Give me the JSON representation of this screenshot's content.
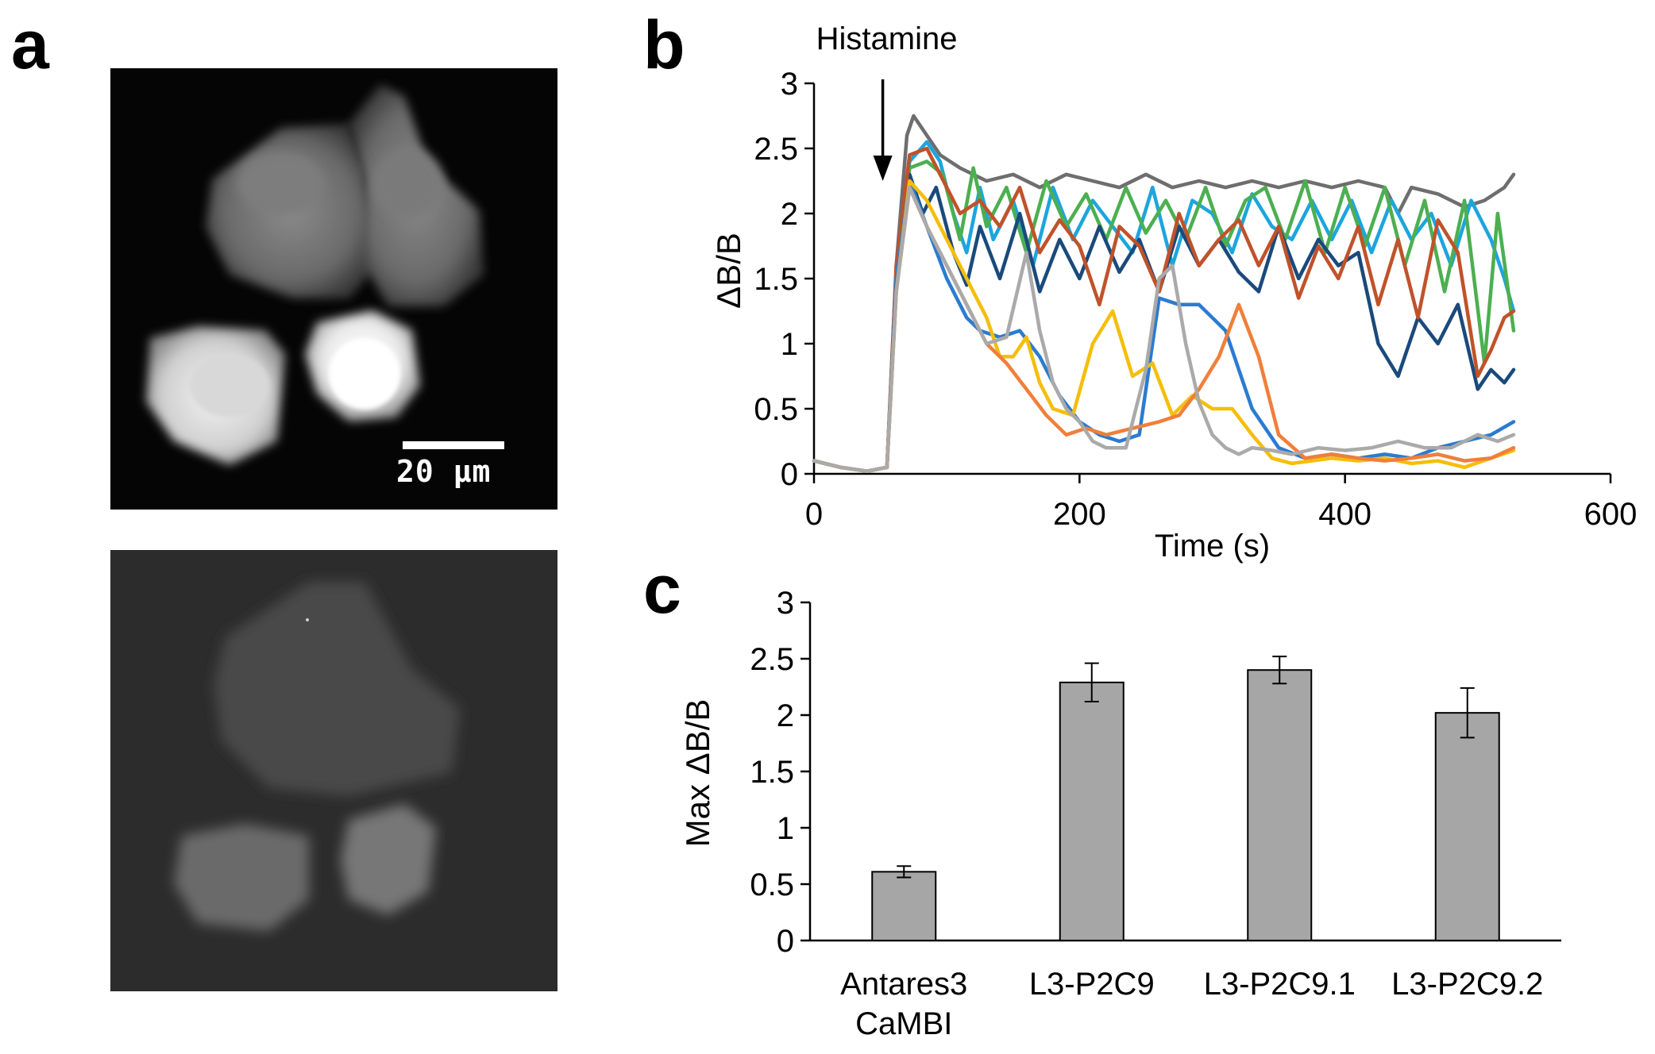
{
  "panels": {
    "a": "a",
    "b": "b",
    "c": "c"
  },
  "microscopy": {
    "scale_bar_label": "20 µm"
  },
  "chart_data": [
    {
      "type": "line",
      "panel": "b",
      "title": "",
      "xlabel": "Time (s)",
      "ylabel": "ΔB/B",
      "xlim": [
        0,
        600
      ],
      "ylim": [
        0,
        3
      ],
      "xticks": [
        0,
        200,
        400,
        600
      ],
      "yticks": [
        0,
        0.5,
        1,
        1.5,
        2,
        2.5,
        3
      ],
      "annotation": "Histamine",
      "annotation_x": 50,
      "series": [
        {
          "name": "trace-grey-dark",
          "color": "#6e6e6e",
          "x": [
            0,
            20,
            40,
            55,
            62,
            70,
            75,
            85,
            95,
            110,
            130,
            150,
            170,
            190,
            210,
            230,
            250,
            270,
            290,
            310,
            330,
            350,
            370,
            390,
            410,
            430,
            440,
            450,
            470,
            490,
            505,
            520,
            527
          ],
          "y": [
            0.1,
            0.05,
            0.02,
            0.05,
            1.6,
            2.6,
            2.75,
            2.6,
            2.45,
            2.35,
            2.25,
            2.3,
            2.2,
            2.3,
            2.25,
            2.2,
            2.3,
            2.2,
            2.25,
            2.2,
            2.25,
            2.2,
            2.25,
            2.2,
            2.25,
            2.2,
            2.0,
            2.2,
            2.15,
            2.05,
            2.1,
            2.2,
            2.3
          ]
        },
        {
          "name": "trace-blue-light",
          "color": "#1ca5de",
          "x": [
            0,
            20,
            40,
            55,
            62,
            72,
            85,
            95,
            105,
            115,
            125,
            135,
            150,
            165,
            180,
            195,
            210,
            225,
            240,
            255,
            270,
            285,
            300,
            315,
            330,
            345,
            360,
            375,
            390,
            405,
            420,
            435,
            450,
            465,
            480,
            495,
            510,
            520,
            527
          ],
          "y": [
            0.1,
            0.05,
            0.02,
            0.05,
            1.5,
            2.4,
            2.55,
            2.4,
            2.0,
            1.7,
            2.2,
            1.8,
            2.1,
            1.6,
            2.2,
            1.8,
            2.1,
            1.9,
            1.7,
            2.2,
            1.6,
            2.1,
            2.0,
            1.7,
            2.15,
            1.9,
            1.8,
            2.1,
            1.8,
            2.1,
            1.7,
            2.1,
            1.8,
            2.0,
            1.6,
            2.1,
            1.8,
            1.5,
            1.25
          ]
        },
        {
          "name": "trace-green",
          "color": "#4caf50",
          "x": [
            0,
            20,
            40,
            55,
            62,
            72,
            85,
            97,
            110,
            120,
            130,
            145,
            160,
            175,
            190,
            205,
            220,
            235,
            250,
            265,
            280,
            295,
            310,
            325,
            340,
            355,
            370,
            385,
            400,
            415,
            430,
            445,
            460,
            475,
            490,
            505,
            515,
            527
          ],
          "y": [
            0.1,
            0.05,
            0.02,
            0.05,
            1.5,
            2.35,
            2.4,
            2.3,
            1.8,
            2.35,
            1.9,
            2.2,
            1.7,
            2.25,
            1.9,
            2.15,
            1.8,
            2.2,
            1.85,
            2.1,
            1.8,
            2.2,
            1.75,
            2.1,
            2.2,
            1.8,
            2.25,
            1.7,
            2.2,
            1.75,
            2.2,
            1.6,
            2.1,
            1.4,
            2.1,
            0.85,
            2.0,
            1.1
          ]
        },
        {
          "name": "trace-blue-navy",
          "color": "#1a4a7c",
          "x": [
            0,
            20,
            40,
            55,
            62,
            72,
            82,
            92,
            105,
            115,
            125,
            140,
            155,
            170,
            185,
            200,
            215,
            230,
            245,
            260,
            275,
            290,
            305,
            320,
            335,
            350,
            365,
            380,
            395,
            410,
            425,
            440,
            455,
            470,
            485,
            500,
            510,
            520,
            527
          ],
          "y": [
            0.1,
            0.05,
            0.02,
            0.05,
            1.5,
            2.3,
            2.0,
            2.2,
            1.7,
            1.45,
            1.9,
            1.5,
            2.0,
            1.4,
            1.8,
            1.5,
            1.9,
            1.55,
            1.8,
            1.4,
            1.9,
            1.6,
            1.8,
            1.55,
            1.4,
            1.9,
            1.5,
            1.8,
            1.6,
            1.7,
            1.0,
            0.75,
            1.2,
            1.0,
            1.3,
            0.65,
            0.8,
            0.7,
            0.8
          ]
        },
        {
          "name": "trace-orange-brown",
          "color": "#c0522a",
          "x": [
            0,
            20,
            40,
            55,
            62,
            72,
            85,
            95,
            110,
            125,
            140,
            155,
            170,
            185,
            200,
            215,
            230,
            245,
            260,
            275,
            290,
            305,
            320,
            335,
            350,
            365,
            380,
            395,
            410,
            425,
            440,
            455,
            470,
            485,
            500,
            510,
            520,
            527
          ],
          "y": [
            0.1,
            0.05,
            0.02,
            0.05,
            1.6,
            2.45,
            2.5,
            2.3,
            2.0,
            2.1,
            1.9,
            2.2,
            1.7,
            1.95,
            1.75,
            1.3,
            1.9,
            1.75,
            1.4,
            2.0,
            1.6,
            1.8,
            1.95,
            1.6,
            1.9,
            1.35,
            1.75,
            1.5,
            1.9,
            1.3,
            1.8,
            1.2,
            1.95,
            1.7,
            0.75,
            0.95,
            1.2,
            1.25
          ]
        },
        {
          "name": "trace-blue-mid",
          "color": "#2b7bd0",
          "x": [
            0,
            20,
            40,
            55,
            62,
            72,
            85,
            100,
            115,
            125,
            140,
            155,
            170,
            185,
            200,
            215,
            230,
            245,
            260,
            275,
            290,
            310,
            330,
            350,
            370,
            390,
            410,
            430,
            450,
            470,
            490,
            510,
            527
          ],
          "y": [
            0.1,
            0.05,
            0.02,
            0.05,
            1.5,
            2.25,
            1.9,
            1.5,
            1.2,
            1.1,
            1.05,
            1.1,
            0.9,
            0.6,
            0.4,
            0.3,
            0.25,
            0.3,
            1.35,
            1.3,
            1.3,
            1.1,
            0.5,
            0.2,
            0.12,
            0.15,
            0.12,
            0.15,
            0.12,
            0.2,
            0.25,
            0.3,
            0.4
          ]
        },
        {
          "name": "trace-yellow",
          "color": "#f5be0a",
          "x": [
            0,
            20,
            40,
            55,
            62,
            72,
            85,
            100,
            115,
            130,
            140,
            150,
            160,
            170,
            180,
            195,
            210,
            225,
            240,
            255,
            270,
            285,
            300,
            315,
            330,
            345,
            360,
            375,
            390,
            410,
            430,
            450,
            470,
            490,
            510,
            527
          ],
          "y": [
            0.1,
            0.05,
            0.02,
            0.05,
            1.4,
            2.25,
            2.1,
            1.8,
            1.5,
            1.2,
            0.9,
            0.9,
            1.05,
            0.7,
            0.5,
            0.45,
            1.0,
            1.25,
            0.75,
            0.85,
            0.45,
            0.6,
            0.5,
            0.5,
            0.3,
            0.12,
            0.08,
            0.1,
            0.12,
            0.1,
            0.12,
            0.08,
            0.1,
            0.05,
            0.12,
            0.18
          ]
        },
        {
          "name": "trace-orange",
          "color": "#f07f3a",
          "x": [
            0,
            20,
            40,
            55,
            62,
            72,
            85,
            100,
            115,
            130,
            145,
            160,
            175,
            190,
            205,
            220,
            240,
            260,
            275,
            290,
            305,
            320,
            335,
            350,
            370,
            390,
            410,
            430,
            450,
            470,
            490,
            510,
            527
          ],
          "y": [
            0.1,
            0.05,
            0.02,
            0.05,
            1.4,
            2.2,
            1.9,
            1.6,
            1.3,
            1.0,
            0.85,
            0.65,
            0.45,
            0.3,
            0.35,
            0.3,
            0.35,
            0.4,
            0.45,
            0.65,
            0.9,
            1.3,
            0.9,
            0.3,
            0.12,
            0.15,
            0.12,
            0.1,
            0.12,
            0.15,
            0.1,
            0.12,
            0.2
          ]
        },
        {
          "name": "trace-grey-light",
          "color": "#aaaaaa",
          "x": [
            0,
            20,
            40,
            55,
            62,
            72,
            85,
            100,
            115,
            130,
            145,
            160,
            170,
            180,
            190,
            200,
            210,
            220,
            235,
            250,
            260,
            270,
            280,
            290,
            300,
            310,
            320,
            330,
            345,
            360,
            380,
            400,
            420,
            440,
            460,
            480,
            500,
            515,
            527
          ],
          "y": [
            0.1,
            0.05,
            0.02,
            0.05,
            1.4,
            2.2,
            1.9,
            1.6,
            1.3,
            1.0,
            1.05,
            1.7,
            1.1,
            0.7,
            0.5,
            0.4,
            0.25,
            0.2,
            0.2,
            0.8,
            1.5,
            1.6,
            1.0,
            0.55,
            0.3,
            0.2,
            0.15,
            0.2,
            0.18,
            0.15,
            0.2,
            0.18,
            0.2,
            0.25,
            0.2,
            0.2,
            0.3,
            0.25,
            0.3
          ]
        }
      ]
    },
    {
      "type": "bar",
      "panel": "c",
      "title": "",
      "xlabel": "",
      "ylabel": "Max ΔB/B",
      "ylim": [
        0,
        3
      ],
      "yticks": [
        0,
        0.5,
        1,
        1.5,
        2,
        2.5,
        3
      ],
      "categories": [
        [
          "Antares3",
          "CaMBI"
        ],
        [
          "L3-P2C9"
        ],
        [
          "L3-P2C9.1"
        ],
        [
          "L3-P2C9.2"
        ]
      ],
      "values": [
        0.61,
        2.29,
        2.4,
        2.02
      ],
      "errors": [
        0.05,
        0.17,
        0.12,
        0.22
      ],
      "bar_color": "#a6a6a6"
    }
  ]
}
